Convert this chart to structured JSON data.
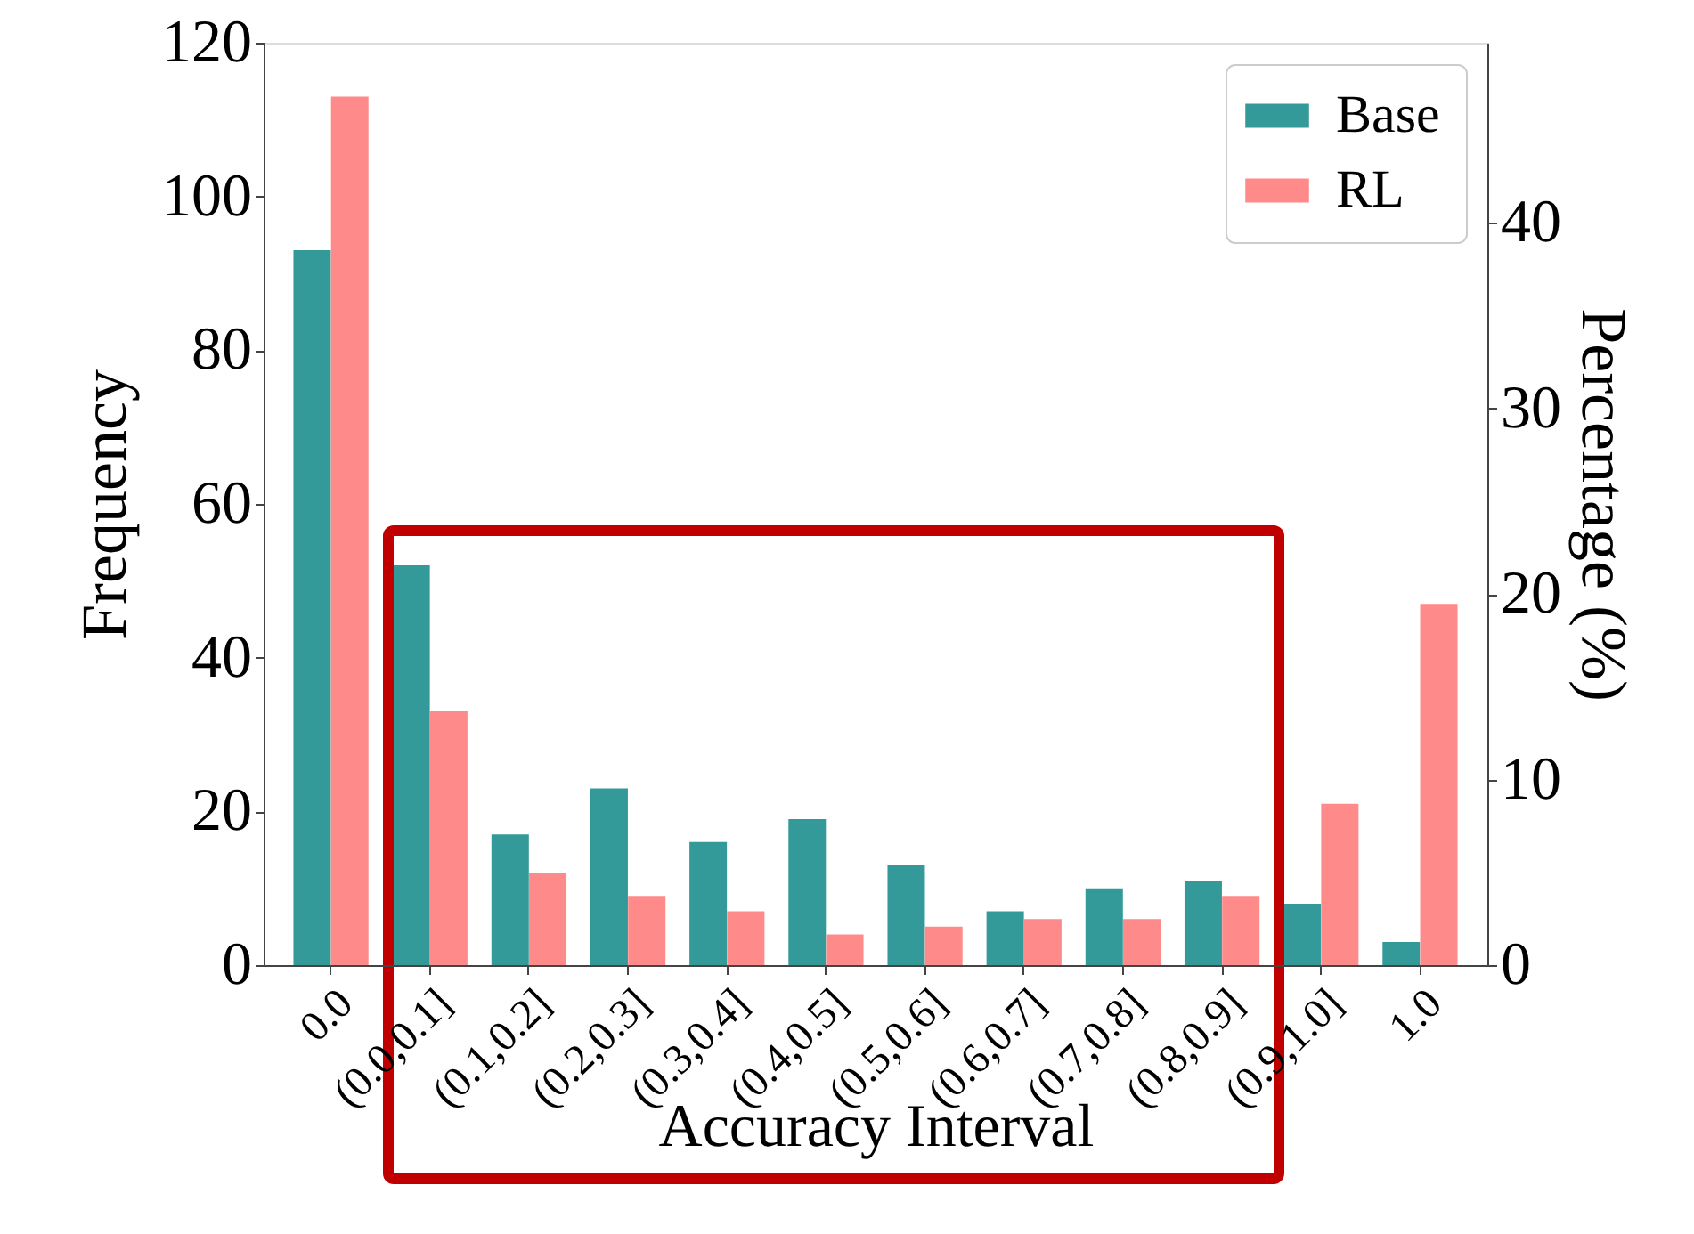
{
  "chart_data": {
    "type": "bar",
    "xlabel": "Accuracy Interval",
    "ylabel": "Frequency",
    "y2label": "Percentage (%)",
    "categories": [
      "0.0",
      "(0.0,0.1]",
      "(0.1,0.2]",
      "(0.2,0.3]",
      "(0.3,0.4]",
      "(0.4,0.5]",
      "(0.5,0.6]",
      "(0.6,0.7]",
      "(0.7,0.8]",
      "(0.8,0.9]",
      "(0.9,1.0]",
      "1.0"
    ],
    "series": [
      {
        "name": "Base",
        "color": "#349a99",
        "values": [
          93,
          52,
          17,
          23,
          16,
          19,
          13,
          7,
          10,
          11,
          8,
          3
        ]
      },
      {
        "name": "RL",
        "color": "#ff8a8a",
        "values": [
          113,
          33,
          12,
          9,
          7,
          4,
          5,
          6,
          6,
          9,
          21,
          47
        ]
      }
    ],
    "ylim": [
      0,
      120
    ],
    "yticks": [
      0,
      20,
      40,
      60,
      80,
      100,
      120
    ],
    "y2lim": [
      0,
      49.7
    ],
    "y2ticks": [
      0,
      10,
      20,
      30,
      40
    ],
    "grid": false,
    "legend": "top right"
  }
}
